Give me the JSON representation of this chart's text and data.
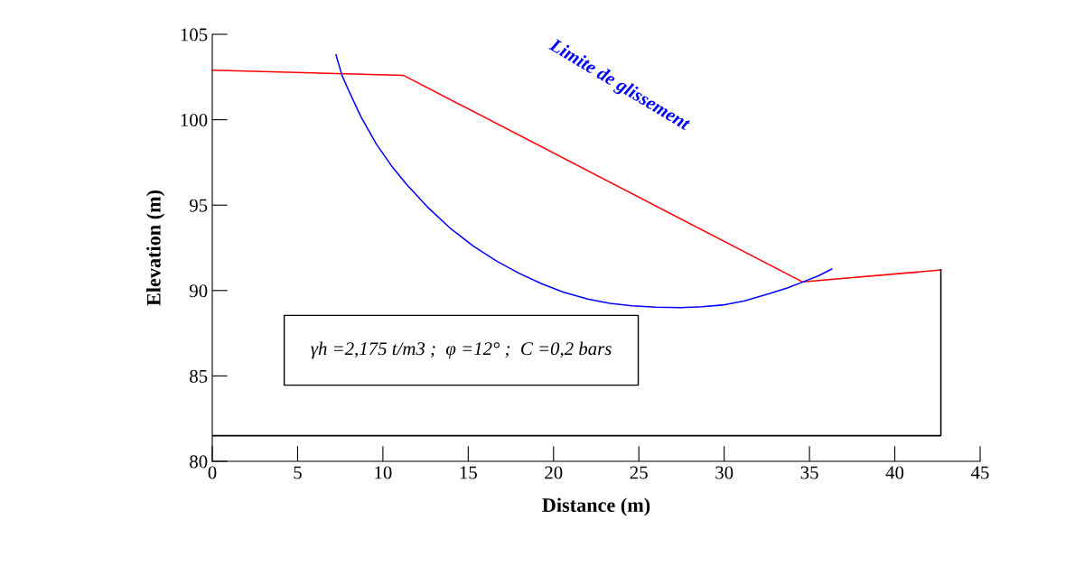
{
  "chart_data": {
    "type": "line",
    "xlabel": "Distance (m)",
    "ylabel": "Elevation (m)",
    "xlim": [
      0,
      45
    ],
    "ylim": [
      80,
      105
    ],
    "xticks": [
      0,
      5,
      10,
      15,
      20,
      25,
      30,
      35,
      40,
      45
    ],
    "yticks": [
      80,
      85,
      90,
      95,
      100,
      105
    ],
    "grid": false,
    "legend": false,
    "marker": "none",
    "line_style": "solid",
    "series": [
      {
        "color": "#ff0000",
        "x": [
          0,
          11.2,
          34.6,
          42.7
        ],
        "values": [
          102.9,
          102.6,
          90.5,
          91.2
        ]
      },
      {
        "color": "#000000",
        "x": [
          42.7,
          42.7,
          0
        ],
        "values": [
          91.2,
          81.5,
          81.5
        ]
      },
      {
        "name": "Limite de glissement",
        "color": "#0000ff",
        "x": [
          7.25,
          7.6,
          8.0,
          8.7,
          9.6,
          10.5,
          11.4,
          12.6,
          14.0,
          15.3,
          16.7,
          18.0,
          19.3,
          20.6,
          22.0,
          23.3,
          24.6,
          26.0,
          27.5,
          28.7,
          29.9,
          31.2,
          32.6,
          33.7,
          34.6,
          35.5,
          36.3
        ],
        "values": [
          103.8,
          102.6,
          101.7,
          100.2,
          98.6,
          97.3,
          96.2,
          94.9,
          93.6,
          92.6,
          91.7,
          91.0,
          90.4,
          89.9,
          89.5,
          89.25,
          89.1,
          89.02,
          89.0,
          89.05,
          89.15,
          89.4,
          89.8,
          90.15,
          90.5,
          90.85,
          91.25
        ]
      }
    ],
    "annotations": [
      "γh =2,175 t/m3 ;  φ =12° ;  C =0,2 bars"
    ]
  }
}
